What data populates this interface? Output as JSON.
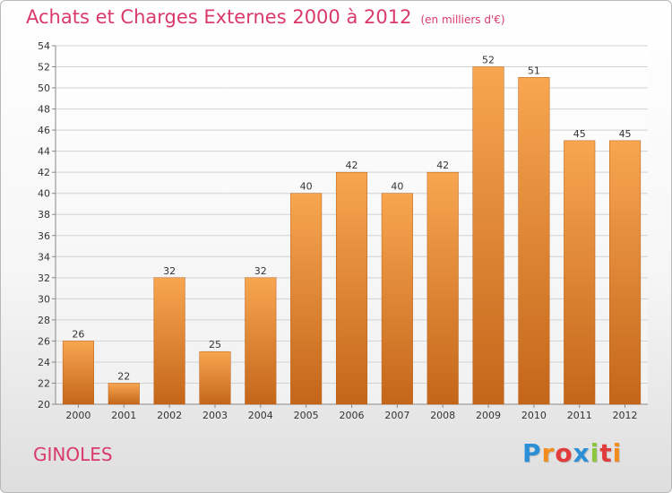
{
  "title": "Achats et Charges Externes 2000 à 2012",
  "subtitle": "(en milliers d'€)",
  "location": "GINOLES",
  "brand": {
    "letters": [
      "P",
      "r",
      "o",
      "x",
      "i",
      "t",
      "i"
    ],
    "colors": [
      "#2a8fd6",
      "#f28c1e",
      "#e23b3b",
      "#2a8fd6",
      "#8cc63f",
      "#e23b3b",
      "#f28c1e"
    ]
  },
  "colors": {
    "bar_top": "#f8a650",
    "bar_bottom": "#c4661a",
    "title": "#d93a6a"
  },
  "chart_data": {
    "type": "bar",
    "title": "Achats et Charges Externes 2000 à 2012",
    "subtitle": "(en milliers d'€)",
    "categories": [
      "2000",
      "2001",
      "2002",
      "2003",
      "2004",
      "2005",
      "2006",
      "2007",
      "2008",
      "2009",
      "2010",
      "2011",
      "2012"
    ],
    "values": [
      26,
      22,
      32,
      25,
      32,
      40,
      42,
      40,
      42,
      52,
      51,
      45,
      45
    ],
    "ylim": [
      20,
      54
    ],
    "yticks": [
      20,
      22,
      24,
      26,
      28,
      30,
      32,
      34,
      36,
      38,
      40,
      42,
      44,
      46,
      48,
      50,
      52,
      54
    ],
    "grid": true,
    "xlabel": "",
    "ylabel": ""
  }
}
